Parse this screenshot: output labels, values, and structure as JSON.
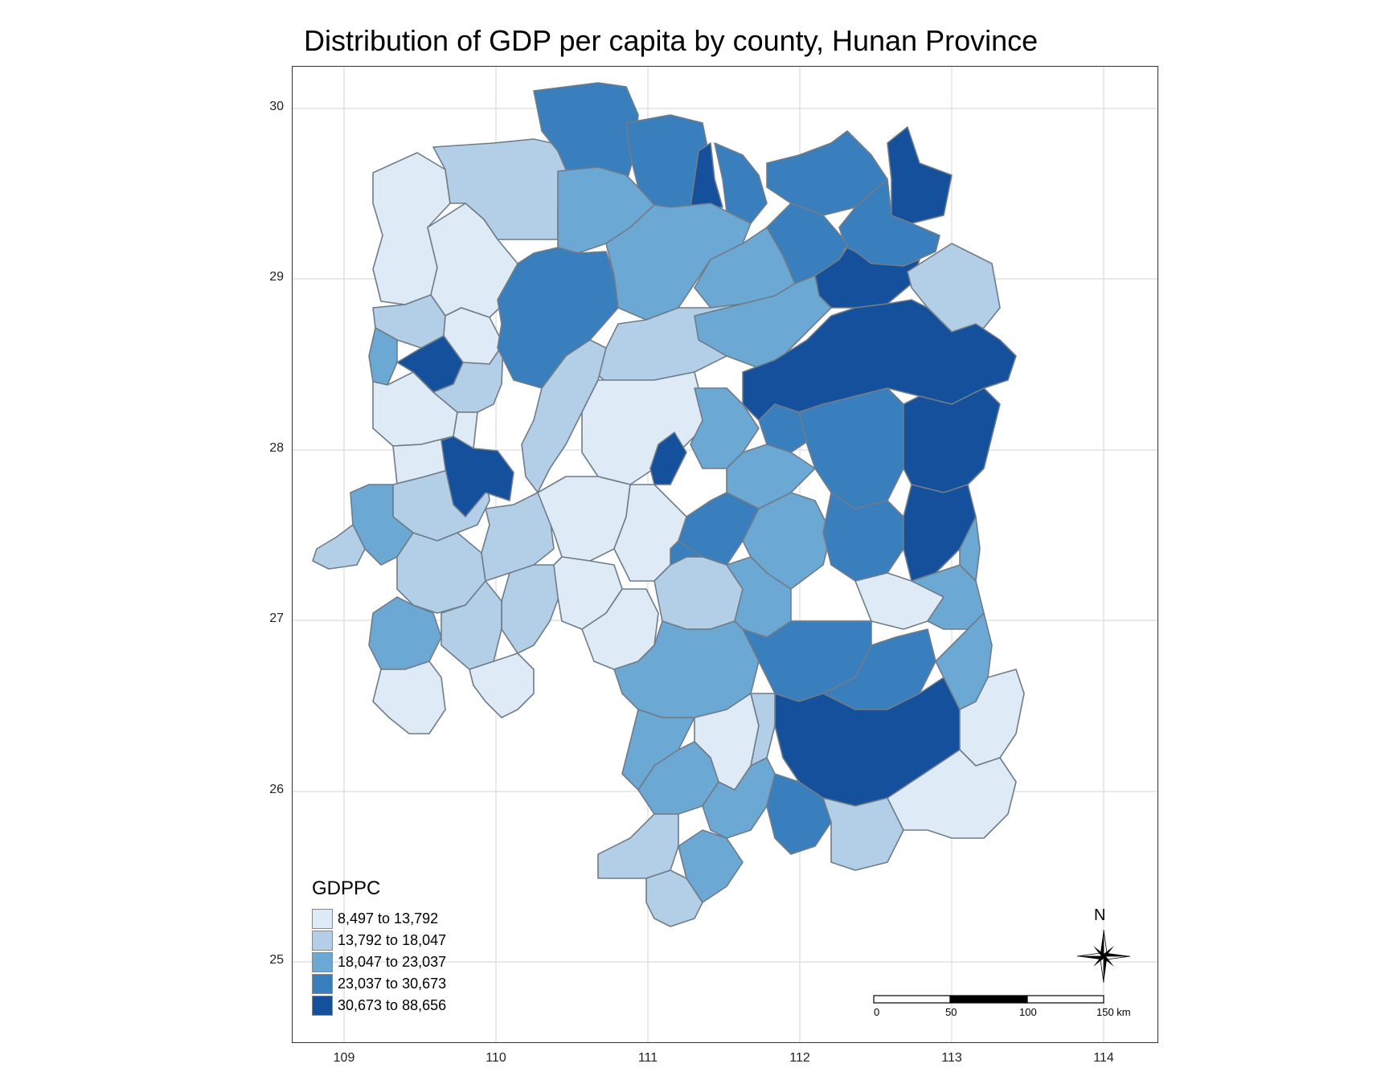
{
  "title": "Distribution of GDP per capita by county, Hunan Province",
  "axes": {
    "x_ticks": [
      "109",
      "110",
      "111",
      "112",
      "113",
      "114"
    ],
    "y_ticks": [
      "30",
      "29",
      "28",
      "27",
      "26",
      "25"
    ]
  },
  "legend": {
    "title": "GDPPC",
    "items": [
      {
        "label": "8,497 to 13,792",
        "color": "#deebf7"
      },
      {
        "label": "13,792 to 18,047",
        "color": "#b3cfe8"
      },
      {
        "label": "18,047 to 23,037",
        "color": "#6ba8d3"
      },
      {
        "label": "23,037 to 30,673",
        "color": "#3a7fbd"
      },
      {
        "label": "30,673 to 88,656",
        "color": "#14509c"
      }
    ]
  },
  "north_arrow": {
    "label": "N"
  },
  "scale_bar": {
    "ticks": [
      "0",
      "50",
      "100",
      "150 km"
    ]
  }
}
